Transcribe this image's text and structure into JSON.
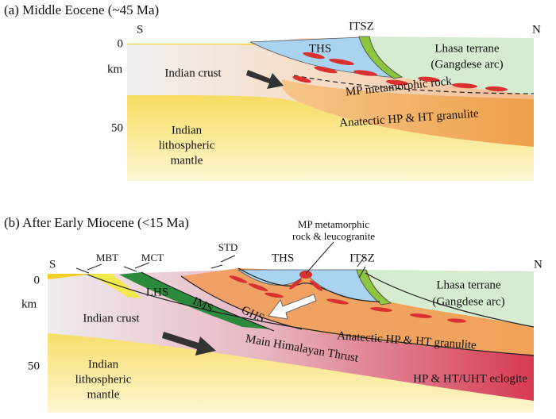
{
  "panels": [
    {
      "title": "(a) Middle Eocene (~45 Ma)",
      "south": "S",
      "north": "N",
      "depth_ticks": [
        0,
        50
      ],
      "depth_unit": "km",
      "labels": [
        "THS",
        "ITSZ",
        "Lhasa terrane",
        "(Gangdese arc)",
        "Indian crust",
        "MP metamorphic rock",
        "Anatectic HP & HT granulite",
        "Indian",
        "lithospheric",
        "mantle"
      ]
    },
    {
      "title": "(b) After Early Miocene (<15 Ma)",
      "south": "S",
      "north": "N",
      "depth_ticks": [
        0,
        50
      ],
      "depth_unit": "km",
      "labels": [
        "MBT",
        "MCT",
        "STD",
        "THS",
        "MP metamorphic",
        "rock & leucogranite",
        "ITSZ",
        "LHS",
        "IMS",
        "GHS",
        "Lhasa terrane",
        "(Gangdese arc)",
        "Indian crust",
        "Main Himalayan Thrust",
        "Anatectic HP & HT granulite",
        "HP & HT/UHT eclogite",
        "Indian",
        "lithospheric",
        "mantle"
      ]
    }
  ]
}
